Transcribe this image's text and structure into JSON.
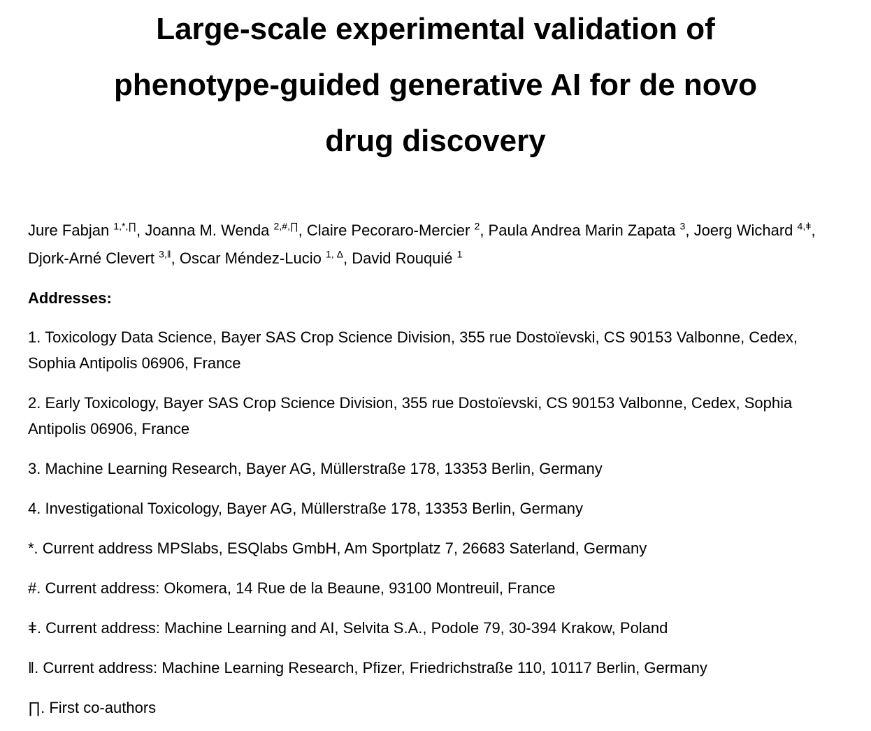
{
  "doc": {
    "title_lines": [
      "Large-scale experimental validation of",
      "phenotype-guided generative AI for de novo",
      "drug discovery"
    ],
    "authors": [
      {
        "name": "Jure Fabjan",
        "sup": "1,*,∏"
      },
      {
        "name": "Joanna M. Wenda",
        "sup": "2,#,∏"
      },
      {
        "name": "Claire Pecoraro-Mercier",
        "sup": "2"
      },
      {
        "name": "Paula Andrea Marin Zapata",
        "sup": "3"
      },
      {
        "name": "Joerg Wichard",
        "sup": "4,ǂ"
      },
      {
        "name": "Djork-Arné Clevert",
        "sup": "3,‖"
      },
      {
        "name": "Oscar Méndez-Lucio",
        "sup": "1, Δ"
      },
      {
        "name": "David Rouquié",
        "sup": "1"
      }
    ],
    "author_separator": ", ",
    "addresses_heading": "Addresses:",
    "affiliations": [
      "1. Toxicology Data Science, Bayer SAS Crop Science Division, 355 rue Dostoïevski, CS 90153 Valbonne, Cedex, Sophia Antipolis 06906, France",
      "2. Early Toxicology, Bayer SAS Crop Science Division, 355 rue Dostoïevski, CS 90153 Valbonne, Cedex, Sophia Antipolis 06906, France",
      "3. Machine Learning Research, Bayer AG, Müllerstraße 178, 13353 Berlin, Germany",
      "4. Investigational Toxicology, Bayer AG, Müllerstraße 178, 13353 Berlin, Germany",
      "*. Current address MPSlabs, ESQlabs GmbH, Am Sportplatz 7, 26683 Saterland, Germany",
      "#. Current address: Okomera, 14 Rue de la Beaune, 93100 Montreuil, France",
      "ǂ. Current address: Machine Learning and AI, Selvita S.A., Podole 79, 30-394 Krakow, Poland",
      "‖. Current address: Machine Learning Research, Pfizer, Friedrichstraße 110, 10117 Berlin, Germany",
      "∏. First co-authors"
    ],
    "colors": {
      "text": "#000000",
      "background": "#ffffff"
    }
  }
}
